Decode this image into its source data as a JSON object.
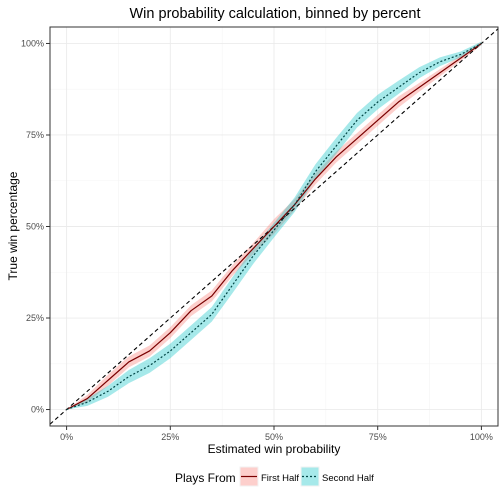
{
  "chart_data": {
    "type": "line",
    "title": "Win probability calculation, binned by percent",
    "xlabel": "Estimated win probability",
    "ylabel": "True win percentage",
    "xlim": [
      -0.04,
      1.04
    ],
    "ylim": [
      -0.045,
      1.045
    ],
    "x_ticks": [
      {
        "value": 0,
        "label": "0%"
      },
      {
        "value": 0.25,
        "label": "25%"
      },
      {
        "value": 0.5,
        "label": "50%"
      },
      {
        "value": 0.75,
        "label": "75%"
      },
      {
        "value": 1,
        "label": "100%"
      }
    ],
    "y_ticks": [
      {
        "value": 0,
        "label": "0%"
      },
      {
        "value": 0.25,
        "label": "25%"
      },
      {
        "value": 0.5,
        "label": "50%"
      },
      {
        "value": 0.75,
        "label": "75%"
      },
      {
        "value": 1,
        "label": "100%"
      }
    ],
    "grid": true,
    "reference_line": {
      "style": "dashed",
      "slope": 1,
      "intercept": 0
    },
    "legend": {
      "title": "Plays From",
      "position": "bottom"
    },
    "series": [
      {
        "name": "First Half",
        "line_style": "solid",
        "line_color": "#7a0000",
        "band_color": "#f8766d",
        "x": [
          0.0,
          0.05,
          0.1,
          0.15,
          0.2,
          0.25,
          0.3,
          0.35,
          0.4,
          0.45,
          0.5,
          0.55,
          0.6,
          0.65,
          0.7,
          0.75,
          0.8,
          0.85,
          0.9,
          0.95,
          1.0
        ],
        "y": [
          0.0,
          0.03,
          0.08,
          0.13,
          0.16,
          0.21,
          0.27,
          0.31,
          0.38,
          0.44,
          0.5,
          0.56,
          0.63,
          0.69,
          0.74,
          0.79,
          0.84,
          0.88,
          0.92,
          0.96,
          1.0
        ],
        "band": [
          0.0,
          0.01,
          0.015,
          0.015,
          0.015,
          0.015,
          0.015,
          0.015,
          0.015,
          0.015,
          0.02,
          0.015,
          0.015,
          0.015,
          0.015,
          0.015,
          0.015,
          0.012,
          0.01,
          0.008,
          0.005
        ]
      },
      {
        "name": "Second Half",
        "line_style": "dotted",
        "line_color": "#004545",
        "band_color": "#00bfc4",
        "x": [
          0.0,
          0.05,
          0.1,
          0.15,
          0.2,
          0.25,
          0.3,
          0.35,
          0.4,
          0.45,
          0.5,
          0.55,
          0.6,
          0.65,
          0.7,
          0.75,
          0.8,
          0.85,
          0.9,
          0.95,
          1.0
        ],
        "y": [
          0.0,
          0.02,
          0.05,
          0.09,
          0.12,
          0.16,
          0.21,
          0.26,
          0.34,
          0.42,
          0.49,
          0.56,
          0.65,
          0.72,
          0.79,
          0.84,
          0.88,
          0.92,
          0.95,
          0.97,
          1.0
        ],
        "band": [
          0.0,
          0.01,
          0.015,
          0.018,
          0.02,
          0.02,
          0.02,
          0.02,
          0.022,
          0.022,
          0.02,
          0.02,
          0.02,
          0.022,
          0.02,
          0.02,
          0.018,
          0.015,
          0.012,
          0.008,
          0.005
        ]
      }
    ]
  }
}
